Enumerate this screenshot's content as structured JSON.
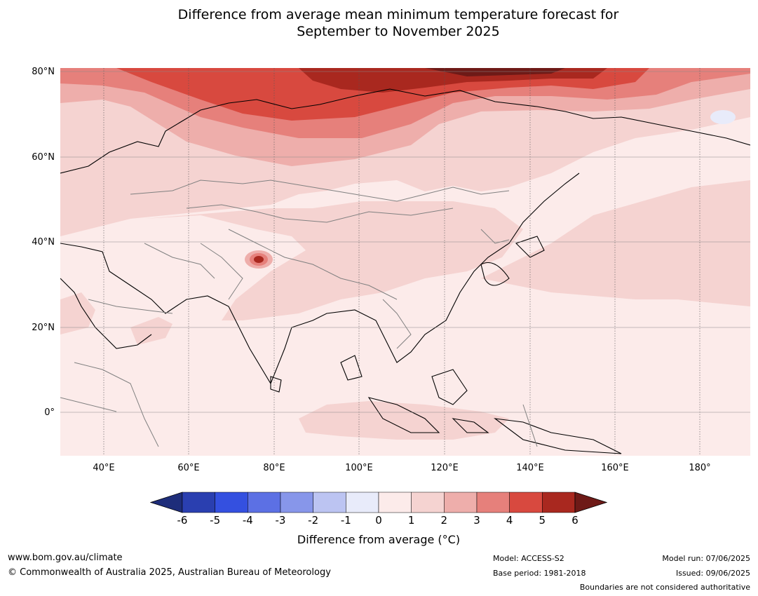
{
  "title_line1": "Difference from average mean minimum temperature forecast for",
  "title_line2": "September to November 2025",
  "lat_labels": [
    "80°N",
    "60°N",
    "40°N",
    "20°N",
    "0°"
  ],
  "lon_labels": [
    "40°E",
    "60°E",
    "80°E",
    "100°E",
    "120°E",
    "140°E",
    "160°E",
    "180°"
  ],
  "colorbar": {
    "ticks": [
      "-6",
      "-5",
      "-4",
      "-3",
      "-2",
      "-1",
      "0",
      "1",
      "2",
      "3",
      "4",
      "5",
      "6"
    ],
    "colors": [
      "#1e2d7a",
      "#2a3fb0",
      "#3450e0",
      "#5c70e4",
      "#8796ea",
      "#bcc4f2",
      "#e8ebfa",
      "#fcebea",
      "#f5d3d1",
      "#eeaeab",
      "#e6807b",
      "#d8493f",
      "#a9281f",
      "#6e1a17"
    ],
    "title": "Difference from average (°C)"
  },
  "footer": {
    "url": "www.bom.gov.au/climate",
    "copyright": "© Commonwealth of Australia 2025, Australian Bureau of Meteorology",
    "model": "Model: ACCESS-S2",
    "base_period": "Base period: 1981-2018",
    "model_run": "Model run: 07/06/2025",
    "issued": "Issued: 09/06/2025",
    "disclaimer": "Boundaries are not considered authoritative"
  }
}
